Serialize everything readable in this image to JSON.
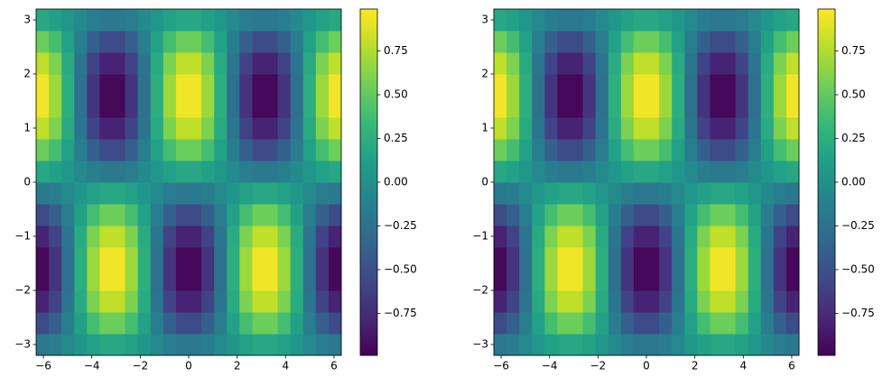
{
  "chart_data": [
    {
      "type": "heatmap",
      "xlim": [
        -6.3,
        6.3
      ],
      "ylim": [
        -3.2,
        3.2
      ],
      "xticks": [
        {
          "value": -6,
          "label": "−6"
        },
        {
          "value": -4,
          "label": "−4"
        },
        {
          "value": -2,
          "label": "−2"
        },
        0,
        2,
        4,
        6
      ],
      "yticks": [
        {
          "value": -3,
          "label": "−3"
        },
        {
          "value": -2,
          "label": "−2"
        },
        {
          "value": -1,
          "label": "−1"
        },
        0,
        1,
        2,
        3
      ],
      "clim": [
        -0.99,
        0.99
      ],
      "cticks": [
        {
          "value": -0.75,
          "label": "−0.75"
        },
        {
          "value": -0.5,
          "label": "−0.50"
        },
        {
          "value": -0.25,
          "label": "−0.25"
        },
        {
          "value": 0,
          "label": "0.00"
        },
        0.25,
        {
          "value": 0.5,
          "label": "0.50"
        },
        0.75
      ],
      "colormap": [
        "#440154",
        "#482878",
        "#3e4a89",
        "#31688e",
        "#26828e",
        "#1f9e89",
        "#35b779",
        "#6ece58",
        "#b5de2b",
        "#fde725"
      ],
      "z": [
        [
          -0.19,
          -0.14,
          -0.05,
          0.05,
          0.14,
          0.19,
          0.19,
          0.14,
          0.05,
          -0.05,
          -0.14,
          -0.19,
          -0.19,
          -0.14,
          -0.05,
          0.05,
          0.14,
          0.19,
          0.19,
          0.14,
          0.05,
          -0.05,
          -0.14,
          -0.19
        ],
        [
          -0.54,
          -0.39,
          -0.14,
          0.14,
          0.39,
          0.54,
          0.54,
          0.39,
          0.14,
          -0.14,
          -0.39,
          -0.54,
          -0.54,
          -0.39,
          -0.14,
          0.14,
          0.39,
          0.54,
          0.54,
          0.39,
          0.14,
          -0.14,
          -0.39,
          -0.54
        ],
        [
          -0.8,
          -0.59,
          -0.22,
          0.22,
          0.59,
          0.8,
          0.8,
          0.59,
          0.22,
          -0.22,
          -0.59,
          -0.8,
          -0.8,
          -0.59,
          -0.22,
          0.22,
          0.59,
          0.8,
          0.8,
          0.59,
          0.22,
          -0.22,
          -0.59,
          -0.8
        ],
        [
          -0.95,
          -0.69,
          -0.25,
          0.25,
          0.69,
          0.95,
          0.95,
          0.69,
          0.25,
          -0.25,
          -0.69,
          -0.95,
          -0.95,
          -0.69,
          -0.25,
          0.25,
          0.69,
          0.95,
          0.95,
          0.69,
          0.25,
          -0.25,
          -0.69,
          -0.95
        ],
        [
          -0.95,
          -0.69,
          -0.25,
          0.25,
          0.69,
          0.95,
          0.95,
          0.69,
          0.25,
          -0.25,
          -0.69,
          -0.95,
          -0.95,
          -0.69,
          -0.25,
          0.25,
          0.69,
          0.95,
          0.95,
          0.69,
          0.25,
          -0.25,
          -0.69,
          -0.95
        ],
        [
          -0.8,
          -0.59,
          -0.22,
          0.22,
          0.59,
          0.8,
          0.8,
          0.59,
          0.22,
          -0.22,
          -0.59,
          -0.8,
          -0.8,
          -0.59,
          -0.22,
          0.22,
          0.59,
          0.8,
          0.8,
          0.59,
          0.22,
          -0.22,
          -0.59,
          -0.8
        ],
        [
          -0.54,
          -0.39,
          -0.14,
          0.14,
          0.39,
          0.54,
          0.54,
          0.39,
          0.14,
          -0.14,
          -0.39,
          -0.54,
          -0.54,
          -0.39,
          -0.14,
          0.14,
          0.39,
          0.54,
          0.54,
          0.39,
          0.14,
          -0.14,
          -0.39,
          -0.54
        ],
        [
          -0.19,
          -0.14,
          -0.05,
          0.05,
          0.14,
          0.19,
          0.19,
          0.14,
          0.05,
          -0.05,
          -0.14,
          -0.19,
          -0.19,
          -0.14,
          -0.05,
          0.05,
          0.14,
          0.19,
          0.19,
          0.14,
          0.05,
          -0.05,
          -0.14,
          -0.19
        ],
        [
          0.19,
          0.14,
          0.05,
          -0.05,
          -0.14,
          -0.19,
          -0.19,
          -0.14,
          -0.05,
          0.05,
          0.14,
          0.19,
          0.19,
          0.14,
          0.05,
          -0.05,
          -0.14,
          -0.19,
          -0.19,
          -0.14,
          -0.05,
          0.05,
          0.14,
          0.19
        ],
        [
          0.54,
          0.39,
          0.14,
          -0.14,
          -0.39,
          -0.54,
          -0.54,
          -0.39,
          -0.14,
          0.14,
          0.39,
          0.54,
          0.54,
          0.39,
          0.14,
          -0.14,
          -0.39,
          -0.54,
          -0.54,
          -0.39,
          -0.14,
          0.14,
          0.39,
          0.54
        ],
        [
          0.8,
          0.59,
          0.22,
          -0.22,
          -0.59,
          -0.8,
          -0.8,
          -0.59,
          -0.22,
          0.22,
          0.59,
          0.8,
          0.8,
          0.59,
          0.22,
          -0.22,
          -0.59,
          -0.8,
          -0.8,
          -0.59,
          -0.22,
          0.22,
          0.59,
          0.8
        ],
        [
          0.95,
          0.69,
          0.25,
          -0.25,
          -0.69,
          -0.95,
          -0.95,
          -0.69,
          -0.25,
          0.25,
          0.69,
          0.95,
          0.95,
          0.69,
          0.25,
          -0.25,
          -0.69,
          -0.95,
          -0.95,
          -0.69,
          -0.25,
          0.25,
          0.69,
          0.95
        ],
        [
          0.95,
          0.69,
          0.25,
          -0.25,
          -0.69,
          -0.95,
          -0.95,
          -0.69,
          -0.25,
          0.25,
          0.69,
          0.95,
          0.95,
          0.69,
          0.25,
          -0.25,
          -0.69,
          -0.95,
          -0.95,
          -0.69,
          -0.25,
          0.25,
          0.69,
          0.95
        ],
        [
          0.8,
          0.59,
          0.22,
          -0.22,
          -0.59,
          -0.8,
          -0.8,
          -0.59,
          -0.22,
          0.22,
          0.59,
          0.8,
          0.8,
          0.59,
          0.22,
          -0.22,
          -0.59,
          -0.8,
          -0.8,
          -0.59,
          -0.22,
          0.22,
          0.59,
          0.8
        ],
        [
          0.54,
          0.39,
          0.14,
          -0.14,
          -0.39,
          -0.54,
          -0.54,
          -0.39,
          -0.14,
          0.14,
          0.39,
          0.54,
          0.54,
          0.39,
          0.14,
          -0.14,
          -0.39,
          -0.54,
          -0.54,
          -0.39,
          -0.14,
          0.14,
          0.39,
          0.54
        ],
        [
          0.19,
          0.14,
          0.05,
          -0.05,
          -0.14,
          -0.19,
          -0.19,
          -0.14,
          -0.05,
          0.05,
          0.14,
          0.19,
          0.19,
          0.14,
          0.05,
          -0.05,
          -0.14,
          -0.19,
          -0.19,
          -0.14,
          -0.05,
          0.05,
          0.14,
          0.19
        ]
      ]
    },
    {
      "type": "heatmap",
      "xlim": [
        -6.3,
        6.3
      ],
      "ylim": [
        -3.2,
        3.2
      ],
      "xticks": [
        {
          "value": -6,
          "label": "−6"
        },
        {
          "value": -4,
          "label": "−4"
        },
        {
          "value": -2,
          "label": "−2"
        },
        0,
        2,
        4,
        6
      ],
      "yticks": [
        {
          "value": -3,
          "label": "−3"
        },
        {
          "value": -2,
          "label": "−2"
        },
        {
          "value": -1,
          "label": "−1"
        },
        0,
        1,
        2,
        3
      ],
      "clim": [
        -0.99,
        0.99
      ],
      "cticks": [
        {
          "value": -0.75,
          "label": "−0.75"
        },
        {
          "value": -0.5,
          "label": "−0.50"
        },
        {
          "value": -0.25,
          "label": "−0.25"
        },
        {
          "value": 0,
          "label": "0.00"
        },
        0.25,
        {
          "value": 0.5,
          "label": "0.50"
        },
        0.75
      ],
      "colormap": [
        "#440154",
        "#482878",
        "#3e4a89",
        "#31688e",
        "#26828e",
        "#1f9e89",
        "#35b779",
        "#6ece58",
        "#b5de2b",
        "#fde725"
      ],
      "z": [
        [
          -0.19,
          -0.14,
          -0.05,
          0.05,
          0.14,
          0.19,
          0.19,
          0.14,
          0.05,
          -0.05,
          -0.14,
          -0.19,
          -0.19,
          -0.14,
          -0.05,
          0.05,
          0.14,
          0.19,
          0.19,
          0.14,
          0.05,
          -0.05,
          -0.14,
          -0.19
        ],
        [
          -0.54,
          -0.39,
          -0.14,
          0.14,
          0.39,
          0.54,
          0.54,
          0.39,
          0.14,
          -0.14,
          -0.39,
          -0.54,
          -0.54,
          -0.39,
          -0.14,
          0.14,
          0.39,
          0.54,
          0.54,
          0.39,
          0.14,
          -0.14,
          -0.39,
          -0.54
        ],
        [
          -0.8,
          -0.59,
          -0.22,
          0.22,
          0.59,
          0.8,
          0.8,
          0.59,
          0.22,
          -0.22,
          -0.59,
          -0.8,
          -0.8,
          -0.59,
          -0.22,
          0.22,
          0.59,
          0.8,
          0.8,
          0.59,
          0.22,
          -0.22,
          -0.59,
          -0.8
        ],
        [
          -0.95,
          -0.69,
          -0.25,
          0.25,
          0.69,
          0.95,
          0.95,
          0.69,
          0.25,
          -0.25,
          -0.69,
          -0.95,
          -0.95,
          -0.69,
          -0.25,
          0.25,
          0.69,
          0.95,
          0.95,
          0.69,
          0.25,
          -0.25,
          -0.69,
          -0.95
        ],
        [
          -0.95,
          -0.69,
          -0.25,
          0.25,
          0.69,
          0.95,
          0.95,
          0.69,
          0.25,
          -0.25,
          -0.69,
          -0.95,
          -0.95,
          -0.69,
          -0.25,
          0.25,
          0.69,
          0.95,
          0.95,
          0.69,
          0.25,
          -0.25,
          -0.69,
          -0.95
        ],
        [
          -0.8,
          -0.59,
          -0.22,
          0.22,
          0.59,
          0.8,
          0.8,
          0.59,
          0.22,
          -0.22,
          -0.59,
          -0.8,
          -0.8,
          -0.59,
          -0.22,
          0.22,
          0.59,
          0.8,
          0.8,
          0.59,
          0.22,
          -0.22,
          -0.59,
          -0.8
        ],
        [
          -0.54,
          -0.39,
          -0.14,
          0.14,
          0.39,
          0.54,
          0.54,
          0.39,
          0.14,
          -0.14,
          -0.39,
          -0.54,
          -0.54,
          -0.39,
          -0.14,
          0.14,
          0.39,
          0.54,
          0.54,
          0.39,
          0.14,
          -0.14,
          -0.39,
          -0.54
        ],
        [
          -0.19,
          -0.14,
          -0.05,
          0.05,
          0.14,
          0.19,
          0.19,
          0.14,
          0.05,
          -0.05,
          -0.14,
          -0.19,
          -0.19,
          -0.14,
          -0.05,
          0.05,
          0.14,
          0.19,
          0.19,
          0.14,
          0.05,
          -0.05,
          -0.14,
          -0.19
        ],
        [
          0.19,
          0.14,
          0.05,
          -0.05,
          -0.14,
          -0.19,
          -0.19,
          -0.14,
          -0.05,
          0.05,
          0.14,
          0.19,
          0.19,
          0.14,
          0.05,
          -0.05,
          -0.14,
          -0.19,
          -0.19,
          -0.14,
          -0.05,
          0.05,
          0.14,
          0.19
        ],
        [
          0.54,
          0.39,
          0.14,
          -0.14,
          -0.39,
          -0.54,
          -0.54,
          -0.39,
          -0.14,
          0.14,
          0.39,
          0.54,
          0.54,
          0.39,
          0.14,
          -0.14,
          -0.39,
          -0.54,
          -0.54,
          -0.39,
          -0.14,
          0.14,
          0.39,
          0.54
        ],
        [
          0.8,
          0.59,
          0.22,
          -0.22,
          -0.59,
          -0.8,
          -0.8,
          -0.59,
          -0.22,
          0.22,
          0.59,
          0.8,
          0.8,
          0.59,
          0.22,
          -0.22,
          -0.59,
          -0.8,
          -0.8,
          -0.59,
          -0.22,
          0.22,
          0.59,
          0.8
        ],
        [
          0.95,
          0.69,
          0.25,
          -0.25,
          -0.69,
          -0.95,
          -0.95,
          -0.69,
          -0.25,
          0.25,
          0.69,
          0.95,
          0.95,
          0.69,
          0.25,
          -0.25,
          -0.69,
          -0.95,
          -0.95,
          -0.69,
          -0.25,
          0.25,
          0.69,
          0.95
        ],
        [
          0.95,
          0.69,
          0.25,
          -0.25,
          -0.69,
          -0.95,
          -0.95,
          -0.69,
          -0.25,
          0.25,
          0.69,
          0.95,
          0.95,
          0.69,
          0.25,
          -0.25,
          -0.69,
          -0.95,
          -0.95,
          -0.69,
          -0.25,
          0.25,
          0.69,
          0.95
        ],
        [
          0.8,
          0.59,
          0.22,
          -0.22,
          -0.59,
          -0.8,
          -0.8,
          -0.59,
          -0.22,
          0.22,
          0.59,
          0.8,
          0.8,
          0.59,
          0.22,
          -0.22,
          -0.59,
          -0.8,
          -0.8,
          -0.59,
          -0.22,
          0.22,
          0.59,
          0.8
        ],
        [
          0.54,
          0.39,
          0.14,
          -0.14,
          -0.39,
          -0.54,
          -0.54,
          -0.39,
          -0.14,
          0.14,
          0.39,
          0.54,
          0.54,
          0.39,
          0.14,
          -0.14,
          -0.39,
          -0.54,
          -0.54,
          -0.39,
          -0.14,
          0.14,
          0.39,
          0.54
        ],
        [
          0.19,
          0.14,
          0.05,
          -0.05,
          -0.14,
          -0.19,
          -0.19,
          -0.14,
          -0.05,
          0.05,
          0.14,
          0.19,
          0.19,
          0.14,
          0.05,
          -0.05,
          -0.14,
          -0.19,
          -0.19,
          -0.14,
          -0.05,
          0.05,
          0.14,
          0.19
        ]
      ]
    }
  ]
}
